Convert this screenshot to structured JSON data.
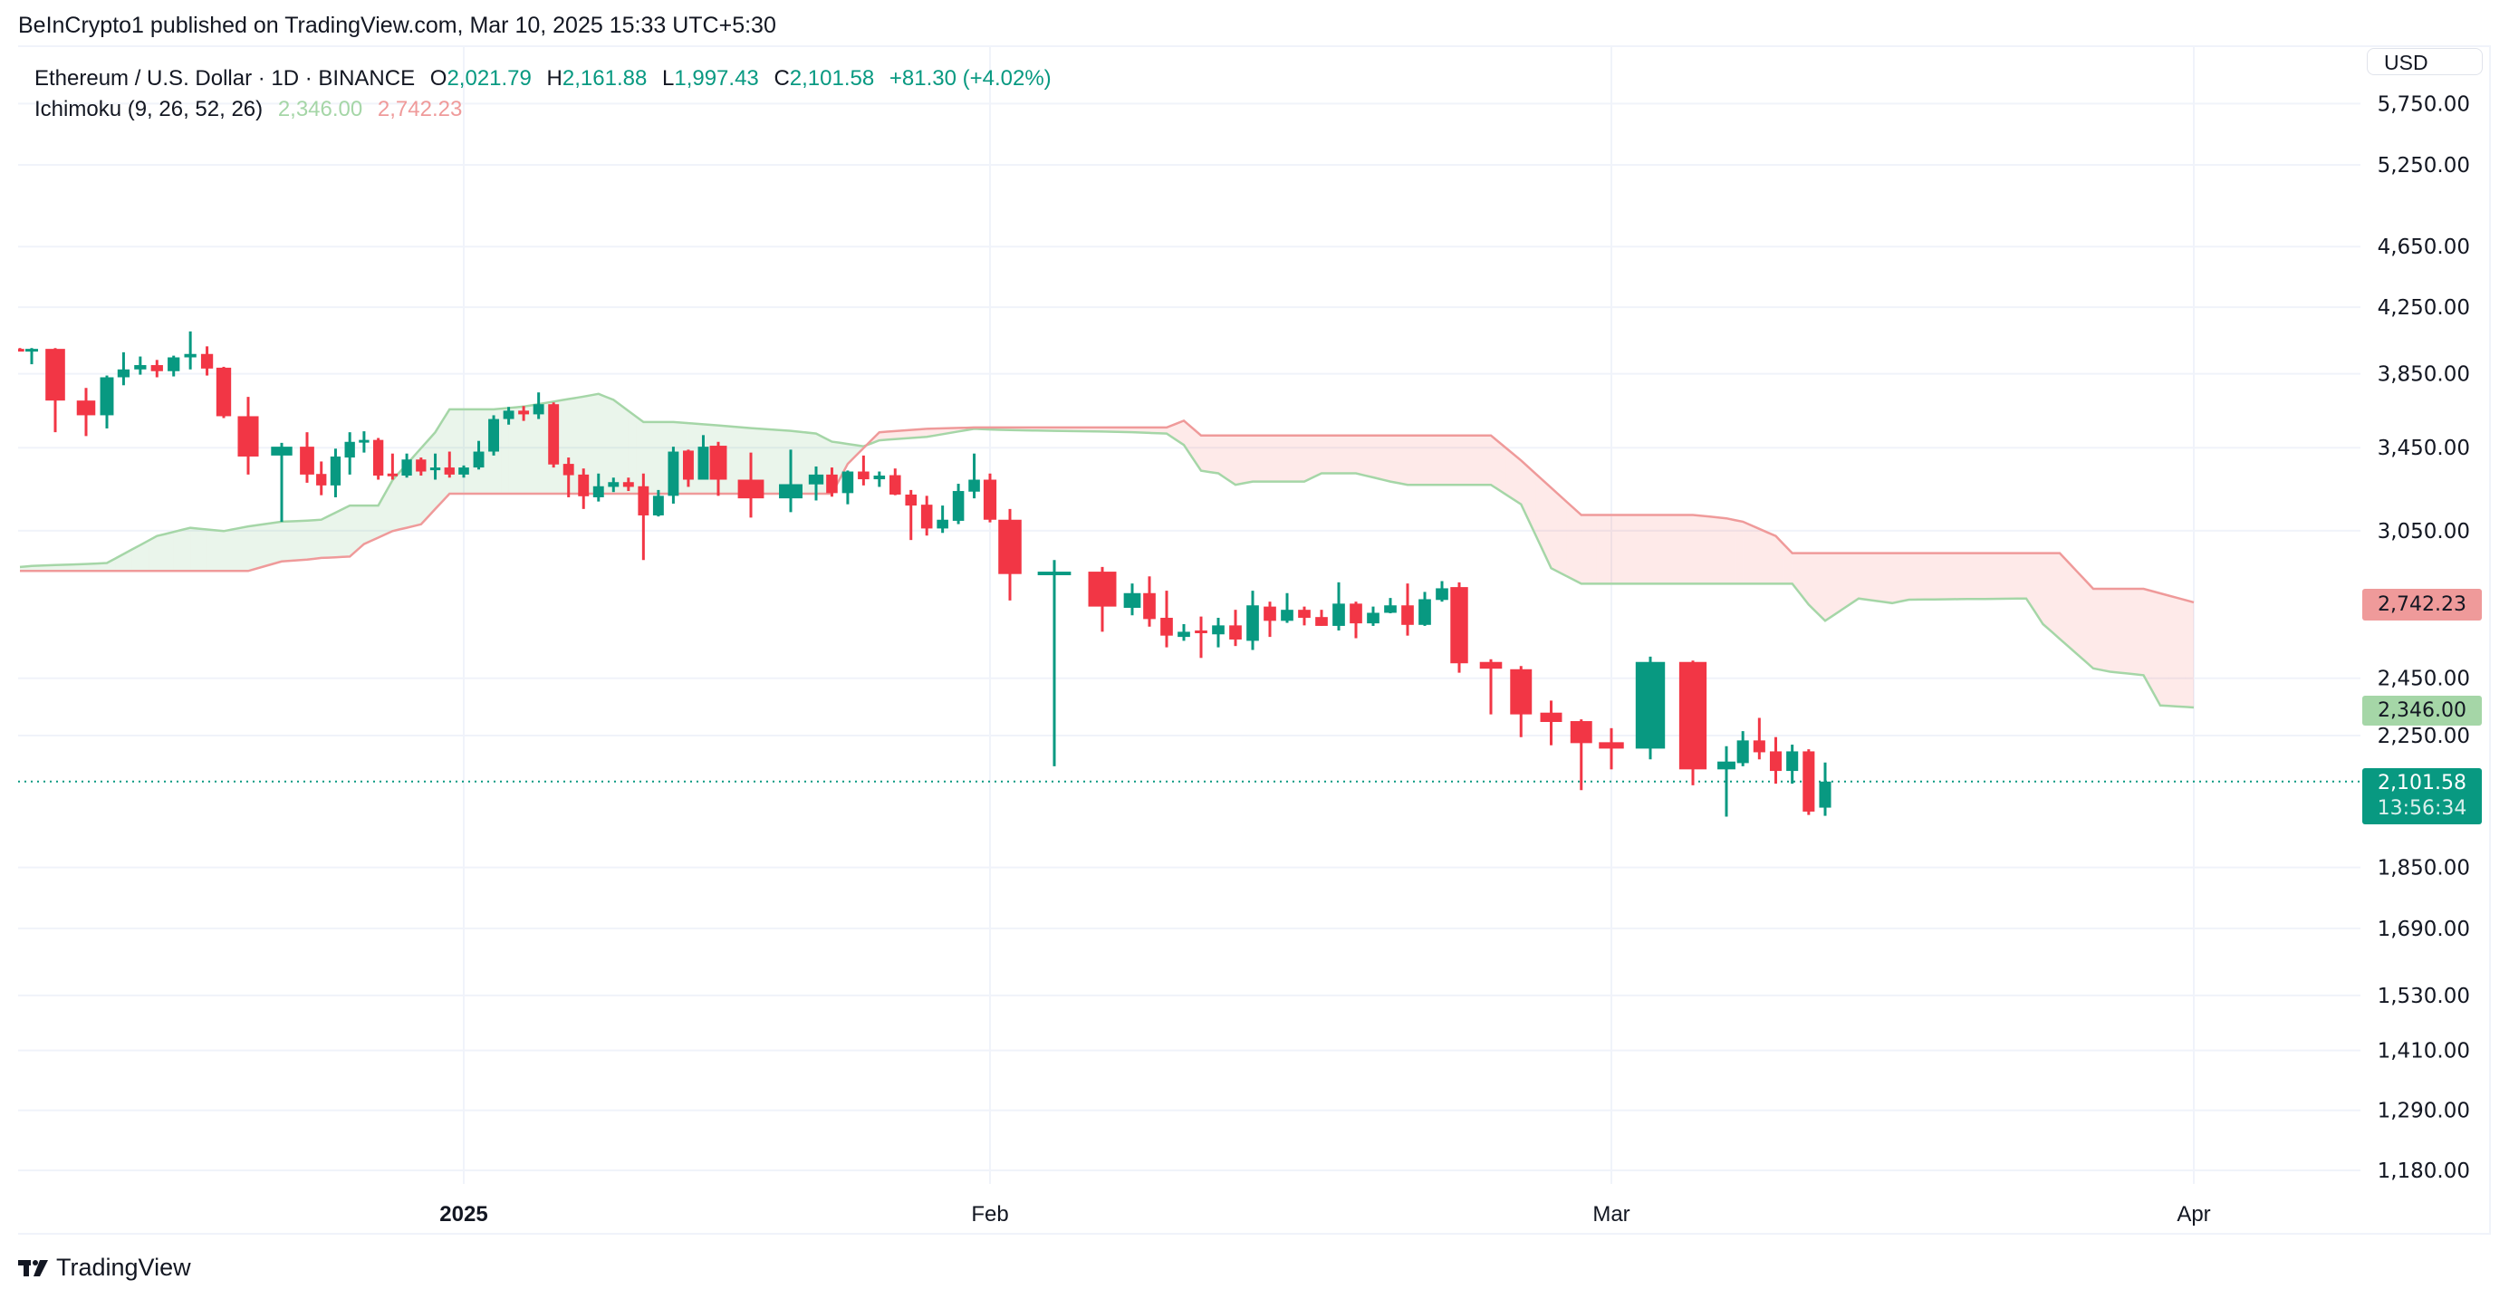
{
  "header": {
    "published": "BeInCrypto1 published on TradingView.com, Mar 10, 2025 15:33 UTC+5:30"
  },
  "legend": {
    "symbol": "Ethereum / U.S. Dollar · 1D · BINANCE",
    "o_label": "O",
    "o_value": "2,021.79",
    "h_label": "H",
    "h_value": "2,161.88",
    "l_label": "L",
    "l_value": "1,997.43",
    "c_label": "C",
    "c_value": "2,101.58",
    "change": "+81.30 (+4.02%)",
    "indicator": "Ichimoku (9, 26, 52, 26)",
    "span_a_value": "2,346.00",
    "span_b_value": "2,742.23"
  },
  "currency_button": "USD",
  "price_tags": {
    "span_b": "2,742.23",
    "span_a": "2,346.00",
    "last_price": "2,101.58",
    "countdown": "13:56:34"
  },
  "branding": {
    "logo_text": "TradingView"
  },
  "colors": {
    "up": "#089981",
    "down": "#f23645",
    "span_a": "#a5d6a7",
    "span_b": "#ef9a9a",
    "cloud_up": "rgba(67,160,71,0.11)",
    "cloud_down": "rgba(244,67,54,0.11)"
  },
  "chart_data": {
    "type": "candlestick",
    "title": "Ethereum / U.S. Dollar · 1D · BINANCE",
    "y_scale": "log",
    "ylim": [
      1130,
      5900
    ],
    "grid": true,
    "y_ticks": [
      "5,750.00",
      "5,250.00",
      "4,650.00",
      "4,250.00",
      "3,850.00",
      "3,450.00",
      "3,050.00",
      "2,450.00",
      "2,250.00",
      "1,850.00",
      "1,690.00",
      "1,530.00",
      "1,410.00",
      "1,290.00",
      "1,180.00"
    ],
    "x_ticks": [
      {
        "date": "2025-01-01",
        "label": "2025",
        "bold": true
      },
      {
        "date": "2025-02-01",
        "label": "Feb",
        "bold": false
      },
      {
        "date": "2025-03-01",
        "label": "Mar",
        "bold": false
      },
      {
        "date": "2025-04-01",
        "label": "Apr",
        "bold": false
      }
    ],
    "last_price": 2101.58,
    "candles_columns": [
      "date",
      "open",
      "high",
      "low",
      "close"
    ],
    "candles": [
      [
        "2024-12-07",
        3995,
        4000,
        3980,
        3985
      ],
      [
        "2024-12-08",
        3985,
        4000,
        3905,
        3995
      ],
      [
        "2024-12-09",
        3995,
        4000,
        3530,
        3700
      ],
      [
        "2024-12-10",
        3700,
        3770,
        3510,
        3620
      ],
      [
        "2024-12-11",
        3620,
        3840,
        3550,
        3830
      ],
      [
        "2024-12-12",
        3830,
        3975,
        3785,
        3875
      ],
      [
        "2024-12-13",
        3875,
        3950,
        3845,
        3900
      ],
      [
        "2024-12-14",
        3900,
        3930,
        3830,
        3865
      ],
      [
        "2024-12-15",
        3865,
        3955,
        3835,
        3945
      ],
      [
        "2024-12-16",
        3945,
        4100,
        3875,
        3965
      ],
      [
        "2024-12-17",
        3965,
        4010,
        3840,
        3880
      ],
      [
        "2024-12-18",
        3885,
        3890,
        3605,
        3615
      ],
      [
        "2024-12-19",
        3615,
        3720,
        3315,
        3405
      ],
      [
        "2024-12-20",
        3410,
        3475,
        3090,
        3455
      ],
      [
        "2024-12-21",
        3455,
        3530,
        3275,
        3315
      ],
      [
        "2024-12-22",
        3318,
        3380,
        3215,
        3262
      ],
      [
        "2024-12-23",
        3262,
        3445,
        3205,
        3405
      ],
      [
        "2024-12-24",
        3400,
        3530,
        3315,
        3480
      ],
      [
        "2024-12-25",
        3480,
        3535,
        3425,
        3490
      ],
      [
        "2024-12-26",
        3490,
        3500,
        3290,
        3310
      ],
      [
        "2024-12-27",
        3320,
        3420,
        3290,
        3315
      ],
      [
        "2024-12-28",
        3310,
        3420,
        3300,
        3390
      ],
      [
        "2024-12-29",
        3390,
        3400,
        3310,
        3330
      ],
      [
        "2024-12-30",
        3340,
        3420,
        3290,
        3350
      ],
      [
        "2024-12-31",
        3350,
        3430,
        3300,
        3315
      ],
      [
        "2025-01-01",
        3315,
        3360,
        3300,
        3350
      ],
      [
        "2025-01-02",
        3350,
        3485,
        3340,
        3430
      ],
      [
        "2025-01-03",
        3430,
        3620,
        3410,
        3600
      ],
      [
        "2025-01-04",
        3600,
        3665,
        3570,
        3645
      ],
      [
        "2025-01-05",
        3645,
        3670,
        3590,
        3625
      ],
      [
        "2025-01-06",
        3625,
        3745,
        3600,
        3680
      ],
      [
        "2025-01-07",
        3680,
        3690,
        3350,
        3365
      ],
      [
        "2025-01-08",
        3368,
        3400,
        3205,
        3312
      ],
      [
        "2025-01-09",
        3315,
        3345,
        3150,
        3210
      ],
      [
        "2025-01-10",
        3205,
        3320,
        3185,
        3258
      ],
      [
        "2025-01-11",
        3255,
        3300,
        3230,
        3278
      ],
      [
        "2025-01-12",
        3278,
        3300,
        3235,
        3255
      ],
      [
        "2025-01-13",
        3258,
        3320,
        2920,
        3120
      ],
      [
        "2025-01-14",
        3120,
        3240,
        3115,
        3212
      ],
      [
        "2025-01-15",
        3212,
        3455,
        3175,
        3430
      ],
      [
        "2025-01-16",
        3435,
        3440,
        3255,
        3290
      ],
      [
        "2025-01-17",
        3290,
        3515,
        3290,
        3455
      ],
      [
        "2025-01-18",
        3460,
        3480,
        3212,
        3290
      ],
      [
        "2025-01-19",
        3290,
        3425,
        3110,
        3200
      ],
      [
        "2025-01-20",
        3200,
        3440,
        3135,
        3268
      ],
      [
        "2025-01-21",
        3267,
        3355,
        3190,
        3315
      ],
      [
        "2025-01-22",
        3315,
        3350,
        3208,
        3225
      ],
      [
        "2025-01-23",
        3225,
        3335,
        3172,
        3330
      ],
      [
        "2025-01-24",
        3330,
        3410,
        3262,
        3292
      ],
      [
        "2025-01-25",
        3292,
        3330,
        3255,
        3310
      ],
      [
        "2025-01-26",
        3312,
        3345,
        3215,
        3218
      ],
      [
        "2025-01-27",
        3218,
        3240,
        3008,
        3166
      ],
      [
        "2025-01-28",
        3170,
        3212,
        3028,
        3060
      ],
      [
        "2025-01-29",
        3060,
        3166,
        3040,
        3100
      ],
      [
        "2025-01-30",
        3095,
        3270,
        3080,
        3235
      ],
      [
        "2025-01-31",
        3232,
        3420,
        3200,
        3290
      ],
      [
        "2025-02-01",
        3290,
        3320,
        3088,
        3100
      ],
      [
        "2025-02-02",
        3100,
        3150,
        2750,
        2860
      ],
      [
        "2025-02-03",
        2855,
        2920,
        2150,
        2870
      ],
      [
        "2025-02-04",
        2870,
        2890,
        2625,
        2725
      ],
      [
        "2025-02-05",
        2720,
        2820,
        2690,
        2780
      ],
      [
        "2025-02-06",
        2780,
        2850,
        2645,
        2675
      ],
      [
        "2025-02-07",
        2680,
        2790,
        2565,
        2610
      ],
      [
        "2025-02-08",
        2605,
        2655,
        2590,
        2625
      ],
      [
        "2025-02-09",
        2630,
        2685,
        2525,
        2625
      ],
      [
        "2025-02-10",
        2615,
        2680,
        2565,
        2650
      ],
      [
        "2025-02-11",
        2650,
        2712,
        2570,
        2595
      ],
      [
        "2025-02-12",
        2590,
        2790,
        2555,
        2730
      ],
      [
        "2025-02-13",
        2725,
        2745,
        2605,
        2668
      ],
      [
        "2025-02-14",
        2668,
        2780,
        2660,
        2712
      ],
      [
        "2025-02-15",
        2712,
        2725,
        2650,
        2680
      ],
      [
        "2025-02-16",
        2683,
        2712,
        2648,
        2648
      ],
      [
        "2025-02-17",
        2648,
        2825,
        2630,
        2737
      ],
      [
        "2025-02-18",
        2737,
        2745,
        2600,
        2658
      ],
      [
        "2025-02-19",
        2658,
        2725,
        2648,
        2700
      ],
      [
        "2025-02-20",
        2700,
        2760,
        2698,
        2730
      ],
      [
        "2025-02-21",
        2730,
        2820,
        2610,
        2652
      ],
      [
        "2025-02-22",
        2652,
        2785,
        2648,
        2755
      ],
      [
        "2025-02-23",
        2752,
        2830,
        2745,
        2800
      ],
      [
        "2025-02-24",
        2805,
        2825,
        2470,
        2505
      ],
      [
        "2025-02-25",
        2510,
        2520,
        2322,
        2485
      ],
      [
        "2025-02-26",
        2483,
        2495,
        2245,
        2322
      ],
      [
        "2025-02-27",
        2328,
        2370,
        2218,
        2296
      ],
      [
        "2025-02-28",
        2299,
        2305,
        2075,
        2225
      ],
      [
        "2025-03-01",
        2228,
        2275,
        2140,
        2207
      ],
      [
        "2025-03-02",
        2207,
        2530,
        2172,
        2510
      ],
      [
        "2025-03-03",
        2510,
        2515,
        2090,
        2140
      ],
      [
        "2025-03-04",
        2140,
        2215,
        1995,
        2165
      ],
      [
        "2025-03-05",
        2160,
        2265,
        2150,
        2234
      ],
      [
        "2025-03-06",
        2234,
        2310,
        2172,
        2195
      ],
      [
        "2025-03-07",
        2198,
        2245,
        2095,
        2135
      ],
      [
        "2025-03-08",
        2135,
        2220,
        2095,
        2198
      ],
      [
        "2025-03-09",
        2198,
        2205,
        2000,
        2010
      ],
      [
        "2025-03-10",
        2021.79,
        2161.88,
        1997.43,
        2101.58
      ]
    ],
    "ichimoku": {
      "span_a": [
        [
          "2024-12-07",
          2890
        ],
        [
          "2024-12-11",
          2907
        ],
        [
          "2024-12-14",
          3026
        ],
        [
          "2024-12-16",
          3063
        ],
        [
          "2024-12-18",
          3048
        ],
        [
          "2024-12-20",
          3091
        ],
        [
          "2024-12-22",
          3100
        ],
        [
          "2024-12-24",
          3166
        ],
        [
          "2024-12-26",
          3166
        ],
        [
          "2024-12-27",
          3288
        ],
        [
          "2024-12-30",
          3530
        ],
        [
          "2024-12-31",
          3652
        ],
        [
          "2025-01-03",
          3652
        ],
        [
          "2025-01-05",
          3667
        ],
        [
          "2025-01-09",
          3722
        ],
        [
          "2025-01-10",
          3737
        ],
        [
          "2025-01-11",
          3704
        ],
        [
          "2025-01-13",
          3584
        ],
        [
          "2025-01-15",
          3584
        ],
        [
          "2025-01-18",
          3566
        ],
        [
          "2025-01-21",
          3523
        ],
        [
          "2025-01-22",
          3481
        ],
        [
          "2025-01-24",
          3457
        ],
        [
          "2025-01-25",
          3488
        ],
        [
          "2025-01-28",
          3506
        ],
        [
          "2025-01-31",
          3548
        ],
        [
          "2025-02-02",
          3541
        ],
        [
          "2025-02-07",
          3523
        ],
        [
          "2025-02-08",
          3464
        ],
        [
          "2025-02-09",
          3334
        ],
        [
          "2025-02-10",
          3321
        ],
        [
          "2025-02-11",
          3265
        ],
        [
          "2025-02-12",
          3281
        ],
        [
          "2025-02-15",
          3281
        ],
        [
          "2025-02-16",
          3321
        ],
        [
          "2025-02-18",
          3321
        ],
        [
          "2025-02-20",
          3281
        ],
        [
          "2025-02-21",
          3265
        ],
        [
          "2025-02-25",
          3265
        ],
        [
          "2025-02-26",
          3172
        ],
        [
          "2025-02-27",
          2885
        ],
        [
          "2025-02-28",
          2819
        ],
        [
          "2025-03-08",
          2819
        ],
        [
          "2025-03-09",
          2733
        ],
        [
          "2025-03-10",
          2668
        ],
        [
          "2025-03-12",
          2758
        ],
        [
          "2025-03-14",
          2739
        ],
        [
          "2025-03-15",
          2753
        ],
        [
          "2025-03-22",
          2758
        ],
        [
          "2025-03-23",
          2655
        ],
        [
          "2025-03-26",
          2486
        ],
        [
          "2025-03-27",
          2474
        ],
        [
          "2025-03-29",
          2461
        ],
        [
          "2025-03-30",
          2353
        ],
        [
          "2025-04-01",
          2346
        ]
      ],
      "span_b": [
        [
          "2024-12-07",
          2873
        ],
        [
          "2024-12-19",
          2873
        ],
        [
          "2024-12-20",
          2914
        ],
        [
          "2024-12-22",
          2929
        ],
        [
          "2024-12-24",
          2935
        ],
        [
          "2024-12-25",
          2990
        ],
        [
          "2024-12-27",
          3048
        ],
        [
          "2024-12-29",
          3079
        ],
        [
          "2024-12-31",
          3222
        ],
        [
          "2025-01-22",
          3222
        ],
        [
          "2025-01-23",
          3368
        ],
        [
          "2025-01-25",
          3530
        ],
        [
          "2025-01-28",
          3548
        ],
        [
          "2025-01-31",
          3555
        ],
        [
          "2025-02-07",
          3555
        ],
        [
          "2025-02-08",
          3591
        ],
        [
          "2025-02-09",
          3513
        ],
        [
          "2025-02-25",
          3513
        ],
        [
          "2025-02-26",
          3385
        ],
        [
          "2025-02-28",
          3122
        ],
        [
          "2025-03-03",
          3122
        ],
        [
          "2025-03-05",
          3091
        ],
        [
          "2025-03-07",
          3026
        ],
        [
          "2025-03-08",
          2950
        ],
        [
          "2025-03-24",
          2950
        ],
        [
          "2025-03-26",
          2798
        ],
        [
          "2025-03-29",
          2798
        ],
        [
          "2025-04-01",
          2742.23
        ]
      ]
    }
  }
}
